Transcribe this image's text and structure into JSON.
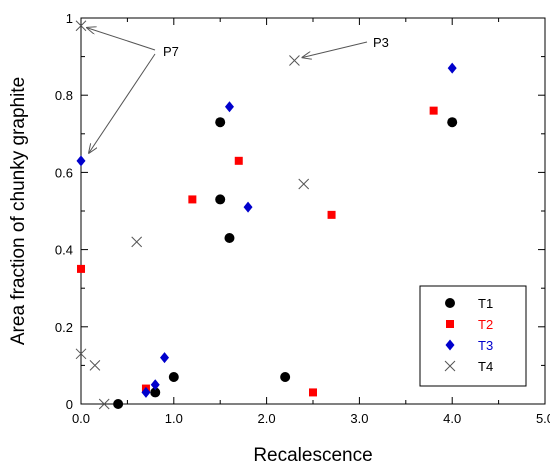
{
  "chart_data": {
    "type": "scatter",
    "xlabel": "Recalescence",
    "ylabel": "Area fraction of chunky graphite",
    "xlim": [
      0,
      5
    ],
    "ylim": [
      0,
      1
    ],
    "xticks": [
      "0.0",
      "1.0",
      "2.0",
      "3.0",
      "4.0",
      "5.0"
    ],
    "yticks": [
      "0",
      "0.2",
      "0.4",
      "0.6",
      "0.8",
      "1"
    ],
    "grid": false,
    "legend_position": "bottom-right",
    "series": [
      {
        "name": "T1",
        "marker": "circle",
        "color": "#000000",
        "x": [
          0.4,
          0.8,
          1.0,
          1.5,
          1.5,
          1.6,
          2.2,
          4.0
        ],
        "y": [
          0.0,
          0.03,
          0.07,
          0.73,
          0.53,
          0.43,
          0.07,
          0.73
        ]
      },
      {
        "name": "T2",
        "marker": "square",
        "color": "#ff0000",
        "x": [
          0.0,
          0.7,
          1.2,
          1.7,
          2.5,
          2.7,
          3.8
        ],
        "y": [
          0.35,
          0.04,
          0.53,
          0.63,
          0.03,
          0.49,
          0.76
        ]
      },
      {
        "name": "T3",
        "marker": "diamond",
        "color": "#0000cc",
        "x": [
          0.0,
          0.7,
          0.8,
          0.9,
          1.6,
          1.8,
          4.0
        ],
        "y": [
          0.63,
          0.03,
          0.05,
          0.12,
          0.77,
          0.51,
          0.87
        ]
      },
      {
        "name": "T4",
        "marker": "x",
        "color": "#555555",
        "x": [
          0.0,
          0.0,
          0.15,
          0.25,
          0.6,
          2.3,
          2.4
        ],
        "y": [
          0.98,
          0.13,
          0.1,
          0.0,
          0.42,
          0.89,
          0.57
        ]
      }
    ],
    "annotations": [
      {
        "text": "P7",
        "arrows_to": [
          {
            "x": 0.0,
            "y": 0.98
          },
          {
            "x": 0.0,
            "y": 0.63
          }
        ]
      },
      {
        "text": "P3",
        "arrows_to": [
          {
            "x": 2.3,
            "y": 0.89
          }
        ]
      }
    ]
  }
}
